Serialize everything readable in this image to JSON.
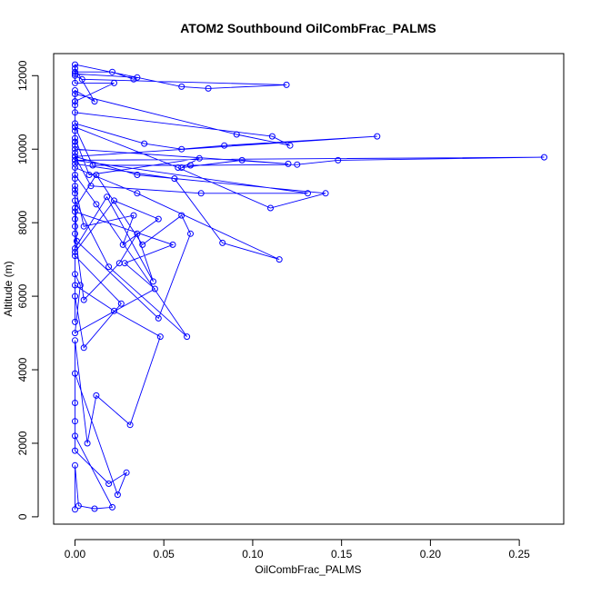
{
  "chart_data": {
    "type": "line",
    "title": "ATOM2 Southbound OilCombFrac_PALMS",
    "xlabel": "OilCombFrac_PALMS",
    "ylabel": "Altitude (m)",
    "xlim": [
      -0.012,
      0.275
    ],
    "ylim": [
      -200,
      12600
    ],
    "x_ticks": [
      0.0,
      0.05,
      0.1,
      0.15,
      0.2,
      0.25
    ],
    "x_tick_labels": [
      "0.00",
      "0.05",
      "0.10",
      "0.15",
      "0.20",
      "0.25"
    ],
    "y_ticks": [
      0,
      2000,
      4000,
      6000,
      8000,
      10000,
      12000
    ],
    "y_tick_labels": [
      "0",
      "2000",
      "4000",
      "6000",
      "8000",
      "10000",
      "12000"
    ],
    "grid": false,
    "legend": "none",
    "series": [
      {
        "color": "#0000ff",
        "marker": "open-circle",
        "x": [
          0.0,
          0.0,
          0.002,
          0.011,
          0.021,
          0.0,
          0.0,
          0.0,
          0.019,
          0.029,
          0.024,
          0.0,
          0.0,
          0.0,
          0.007,
          0.012,
          0.031,
          0.048,
          0.022,
          0.0,
          0.0,
          0.0,
          0.026,
          0.005,
          0.0,
          0.0,
          0.0,
          0.005,
          0.025,
          0.035,
          0.044,
          0.018,
          0.0,
          0.0,
          0.0,
          0.012,
          0.063,
          0.019,
          0.0,
          0.0,
          0.0,
          0.055,
          0.028,
          0.045,
          0.0,
          0.003,
          0.0,
          0.0,
          0.022,
          0.047,
          0.027,
          0.033,
          0.005,
          0.0,
          0.0,
          0.001,
          0.047,
          0.065,
          0.06,
          0.038,
          0.012,
          0.0,
          0.0,
          0.0,
          0.035,
          0.115,
          0.083,
          0.056,
          0.0,
          0.0,
          0.0,
          0.131,
          0.071,
          0.009,
          0.0,
          0.0,
          0.0,
          0.058,
          0.11,
          0.141,
          0.035,
          0.0,
          0.0,
          0.0,
          0.12,
          0.094,
          0.06,
          0.07,
          0.008,
          0.0,
          0.0,
          0.0,
          0.264,
          0.148,
          0.125,
          0.065,
          0.01,
          0.0,
          0.0,
          0.0,
          0.17,
          0.084,
          0.06,
          0.039,
          0.0,
          0.0,
          0.0,
          0.091,
          0.121,
          0.111,
          0.0,
          0.0,
          0.0,
          0.011,
          0.0,
          0.0,
          0.004,
          0.119,
          0.075,
          0.06,
          0.0,
          0.0,
          0.021,
          0.033,
          0.035,
          0.0,
          0.0,
          0.022,
          0.0
        ],
        "y": [
          200,
          1400,
          300,
          220,
          260,
          2200,
          3100,
          1800,
          900,
          1200,
          600,
          3900,
          2600,
          4800,
          2000,
          3300,
          2500,
          4900,
          5600,
          6300,
          5300,
          7100,
          5800,
          4600,
          6000,
          8100,
          7700,
          5900,
          6900,
          7700,
          6400,
          8700,
          7300,
          7900,
          9300,
          8500,
          4900,
          6800,
          8600,
          9200,
          8300,
          7400,
          6900,
          6200,
          5000,
          6300,
          6600,
          7200,
          8600,
          8100,
          7400,
          8200,
          7900,
          9000,
          8800,
          7500,
          5400,
          7700,
          8200,
          7400,
          9300,
          8400,
          8900,
          9500,
          8800,
          7000,
          7450,
          9200,
          9600,
          10100,
          9700,
          8800,
          8800,
          9000,
          9800,
          10200,
          10600,
          9500,
          8400,
          8800,
          9300,
          9800,
          10200,
          10000,
          9600,
          9700,
          9500,
          9750,
          9300,
          10300,
          9900,
          9700,
          9780,
          9700,
          9580,
          9560,
          9560,
          10600,
          10500,
          9800,
          10350,
          10100,
          10000,
          10150,
          10700,
          11200,
          11500,
          10400,
          10100,
          10350,
          11000,
          11300,
          11600,
          11300,
          12200,
          12000,
          11900,
          11750,
          11650,
          11700,
          12300,
          12100,
          12100,
          11900,
          11950,
          12050,
          11800,
          11800,
          11300
        ]
      }
    ]
  }
}
